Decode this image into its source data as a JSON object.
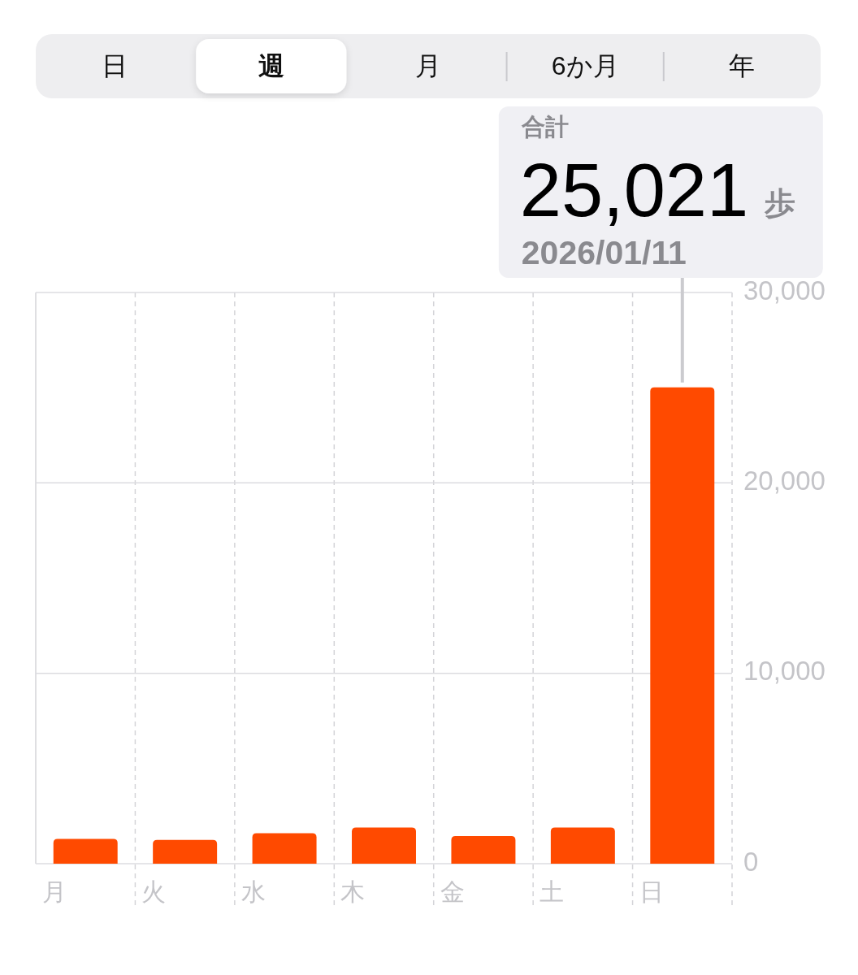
{
  "chart_data": {
    "type": "bar",
    "categories": [
      "月",
      "火",
      "水",
      "木",
      "金",
      "土",
      "日"
    ],
    "values": [
      1300,
      1250,
      1600,
      1900,
      1450,
      1900,
      25021
    ],
    "color": "#ff4a00",
    "ylim": [
      0,
      30000
    ],
    "yticks": [
      {
        "value": 0,
        "label": "0"
      },
      {
        "value": 10000,
        "label": "10,000"
      },
      {
        "value": 20000,
        "label": "20,000"
      },
      {
        "value": 30000,
        "label": "30,000"
      }
    ],
    "grid": true,
    "value_labels": [
      null,
      null,
      null,
      null,
      null,
      null,
      "25,021"
    ],
    "annotations": [
      "日",
      "週",
      "月",
      "6か月",
      "年",
      "合計",
      "歩",
      "2026/01/11"
    ]
  }
}
